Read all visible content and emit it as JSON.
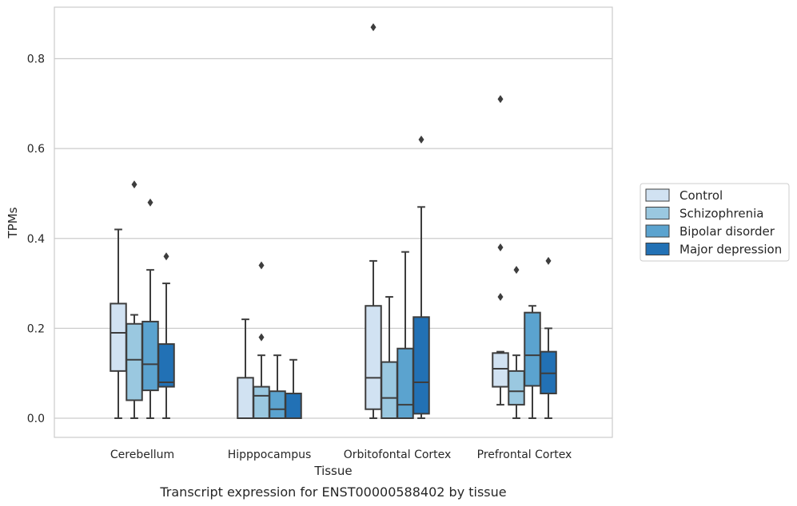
{
  "chart_data": {
    "type": "boxplot",
    "xlabel": "Tissue",
    "ylabel": "TPMs",
    "caption": "Transcript expression for ENST00000588402 by tissue",
    "ylim": [
      -0.042,
      0.915
    ],
    "yticks": [
      0.0,
      0.2,
      0.4,
      0.6,
      0.8
    ],
    "ytick_labels": [
      "0.0",
      "0.2",
      "0.4",
      "0.6",
      "0.8"
    ],
    "grid": "horizontal",
    "legend_placement": "right",
    "categories": [
      "Cerebellum",
      "Hipppocampus",
      "Orbitofontal Cortex",
      "Prefrontal Cortex"
    ],
    "series": [
      {
        "name": "Control",
        "color": "#d1e2f2",
        "boxes": [
          {
            "min": 0.0,
            "q1": 0.105,
            "median": 0.19,
            "q3": 0.255,
            "max": 0.42,
            "outliers": []
          },
          {
            "min": 0.0,
            "q1": 0.0,
            "median": 0.0,
            "q3": 0.09,
            "max": 0.22,
            "outliers": []
          },
          {
            "min": 0.0,
            "q1": 0.02,
            "median": 0.09,
            "q3": 0.25,
            "max": 0.35,
            "outliers": [
              0.87
            ]
          },
          {
            "min": 0.03,
            "q1": 0.07,
            "median": 0.11,
            "q3": 0.145,
            "max": 0.148,
            "outliers": [
              0.27,
              0.38,
              0.71
            ]
          }
        ]
      },
      {
        "name": "Schizophrenia",
        "color": "#9ac8e0",
        "boxes": [
          {
            "min": 0.0,
            "q1": 0.04,
            "median": 0.13,
            "q3": 0.21,
            "max": 0.23,
            "outliers": [
              0.52
            ]
          },
          {
            "min": 0.0,
            "q1": 0.0,
            "median": 0.05,
            "q3": 0.07,
            "max": 0.14,
            "outliers": [
              0.18,
              0.34
            ]
          },
          {
            "min": 0.0,
            "q1": 0.0,
            "median": 0.045,
            "q3": 0.125,
            "max": 0.27,
            "outliers": []
          },
          {
            "min": 0.0,
            "q1": 0.03,
            "median": 0.06,
            "q3": 0.105,
            "max": 0.14,
            "outliers": [
              0.33
            ]
          }
        ]
      },
      {
        "name": "Bipolar disorder",
        "color": "#5ba3cf",
        "boxes": [
          {
            "min": 0.0,
            "q1": 0.062,
            "median": 0.12,
            "q3": 0.215,
            "max": 0.33,
            "outliers": [
              0.48
            ]
          },
          {
            "min": 0.0,
            "q1": 0.0,
            "median": 0.02,
            "q3": 0.06,
            "max": 0.14,
            "outliers": []
          },
          {
            "min": 0.0,
            "q1": 0.0,
            "median": 0.03,
            "q3": 0.155,
            "max": 0.37,
            "outliers": []
          },
          {
            "min": 0.0,
            "q1": 0.072,
            "median": 0.14,
            "q3": 0.235,
            "max": 0.25,
            "outliers": []
          }
        ]
      },
      {
        "name": "Major depression",
        "color": "#2271b5",
        "boxes": [
          {
            "min": 0.0,
            "q1": 0.07,
            "median": 0.08,
            "q3": 0.165,
            "max": 0.3,
            "outliers": [
              0.36
            ]
          },
          {
            "min": 0.0,
            "q1": 0.0,
            "median": 0.0,
            "q3": 0.055,
            "max": 0.13,
            "outliers": []
          },
          {
            "min": 0.0,
            "q1": 0.01,
            "median": 0.08,
            "q3": 0.225,
            "max": 0.47,
            "outliers": [
              0.62
            ]
          },
          {
            "min": 0.0,
            "q1": 0.055,
            "median": 0.1,
            "q3": 0.148,
            "max": 0.2,
            "outliers": [
              0.35
            ]
          }
        ]
      }
    ]
  }
}
